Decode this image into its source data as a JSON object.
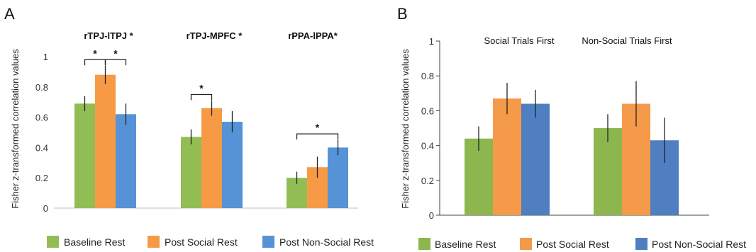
{
  "legend": [
    "Baseline Rest",
    "Post Social Rest",
    "Post Non-Social Rest"
  ],
  "chart_data": [
    {
      "panel": "A",
      "type": "bar",
      "ylabel": "Fisher z-transformed correlation values",
      "ylim": [
        0,
        1
      ],
      "yticks": [
        "0",
        "0.2",
        "0.4",
        "0.6",
        "0.8",
        "1"
      ],
      "colors": [
        "#92BD55",
        "#F79A45",
        "#5593D6"
      ],
      "groups": [
        {
          "label": "rTPJ-lTPJ *",
          "values": [
            0.69,
            0.88,
            0.62
          ],
          "errors": [
            0.05,
            0.06,
            0.07
          ]
        },
        {
          "label": "rTPJ-MPFC *",
          "values": [
            0.47,
            0.66,
            0.57
          ],
          "errors": [
            0.05,
            0.05,
            0.07
          ]
        },
        {
          "label": "rPPA-lPPA*",
          "values": [
            0.2,
            0.27,
            0.4
          ],
          "errors": [
            0.04,
            0.07,
            0.05
          ]
        }
      ],
      "significance": [
        {
          "group": 0,
          "from": 0,
          "to": 1,
          "label": "*"
        },
        {
          "group": 0,
          "from": 1,
          "to": 2,
          "label": "*"
        },
        {
          "group": 1,
          "from": 0,
          "to": 1,
          "label": "*"
        },
        {
          "group": 2,
          "from": 0,
          "to": 2,
          "label": "*"
        }
      ]
    },
    {
      "panel": "B",
      "type": "bar",
      "ylabel": "Fisher z-transformed correlation values",
      "ylim": [
        0,
        1
      ],
      "yticks": [
        "0",
        "0.2",
        "0.4",
        "0.6",
        "0.8",
        "1"
      ],
      "colors": [
        "#8DB64F",
        "#F59A49",
        "#4F7FC0"
      ],
      "groups": [
        {
          "label": "Social Trials First",
          "values": [
            0.44,
            0.67,
            0.64
          ],
          "errors": [
            0.07,
            0.09,
            0.08
          ]
        },
        {
          "label": "Non-Social Trials First",
          "values": [
            0.5,
            0.64,
            0.43
          ],
          "errors": [
            0.08,
            0.13,
            0.13
          ]
        }
      ],
      "significance": []
    }
  ]
}
